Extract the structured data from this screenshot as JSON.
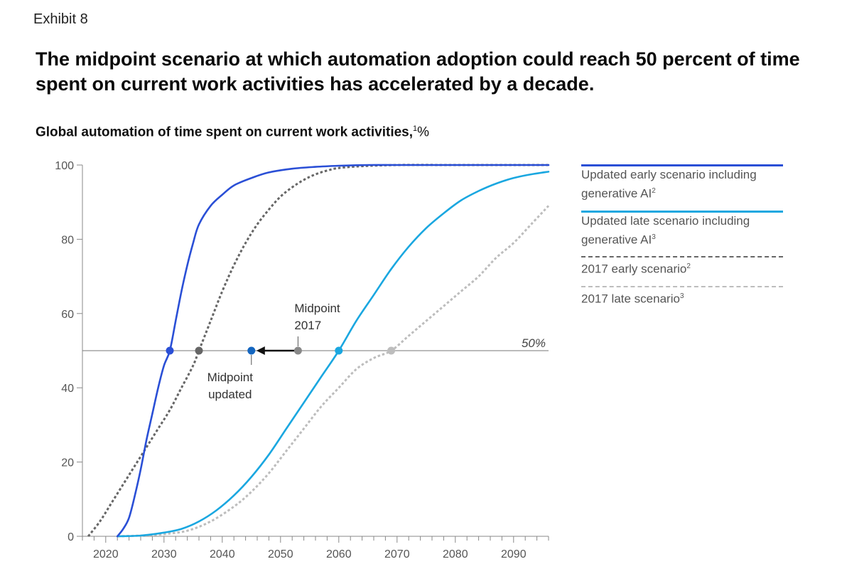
{
  "header": {
    "exhibit": "Exhibit 8",
    "headline": "The midpoint scenario at which automation adoption could reach 50 percent of time spent on current work activities has accelerated by a decade.",
    "subtitle": "Global automation of time spent on current work activities,",
    "subtitle_footnote": "1",
    "subtitle_unit": "%"
  },
  "colors": {
    "updated_early": "#2a4fd6",
    "updated_late": "#1aa7e0",
    "early_2017": "#666666",
    "late_2017": "#bdbdbd",
    "midpoint_updated": "#1466c0",
    "midpoint_2017": "#888888",
    "axis": "#888888"
  },
  "legend": [
    {
      "label": "Updated early scenario including generative AI",
      "footnote": "2",
      "style": "solid",
      "color_key": "updated_early"
    },
    {
      "label": "Updated late scenario including generative AI",
      "footnote": "3",
      "style": "solid",
      "color_key": "updated_late"
    },
    {
      "label": "2017 early scenario",
      "footnote": "2",
      "style": "dashed",
      "color_key": "early_2017"
    },
    {
      "label": "2017 late scenario",
      "footnote": "3",
      "style": "dashed",
      "color_key": "late_2017"
    }
  ],
  "chart_data": {
    "type": "line",
    "title": "Global automation of time spent on current work activities, %",
    "xlabel": "",
    "ylabel": "%",
    "xlim": [
      2016,
      2096
    ],
    "ylim": [
      0,
      100
    ],
    "x_ticks": [
      2020,
      2030,
      2040,
      2050,
      2060,
      2070,
      2080,
      2090
    ],
    "y_ticks": [
      0,
      20,
      40,
      60,
      80,
      100
    ],
    "reference_line": {
      "y": 50,
      "label": "50%"
    },
    "series": [
      {
        "name": "Updated early scenario including generative AI",
        "color_key": "updated_early",
        "style": "solid",
        "x": [
          2022,
          2023,
          2024,
          2025,
          2026,
          2027,
          2028,
          2029,
          2030,
          2031,
          2032,
          2033,
          2034,
          2035,
          2036,
          2038,
          2040,
          2042,
          2045,
          2048,
          2052,
          2056,
          2060,
          2065,
          2070,
          2080,
          2096
        ],
        "y": [
          0,
          2,
          5,
          11,
          18,
          26,
          33,
          40,
          46,
          50,
          58,
          66,
          73,
          79,
          84,
          89,
          92,
          94.5,
          96.5,
          98,
          99,
          99.5,
          99.8,
          100,
          100,
          100,
          100
        ]
      },
      {
        "name": "Updated late scenario including generative AI",
        "color_key": "updated_late",
        "style": "solid",
        "x": [
          2022,
          2026,
          2030,
          2033,
          2036,
          2039,
          2042,
          2045,
          2048,
          2051,
          2054,
          2057,
          2060,
          2063,
          2066,
          2069,
          2072,
          2075,
          2078,
          2081,
          2084,
          2087,
          2090,
          2093,
          2096
        ],
        "y": [
          0,
          0.2,
          1,
          2,
          4,
          7,
          11,
          16,
          22,
          29,
          36,
          43,
          50,
          58,
          65,
          72,
          78,
          83,
          87,
          90.5,
          93,
          95,
          96.5,
          97.5,
          98.2
        ]
      },
      {
        "name": "2017 early scenario",
        "color_key": "early_2017",
        "style": "dashed",
        "x": [
          2017,
          2019,
          2021,
          2023,
          2025,
          2027,
          2029,
          2031,
          2033,
          2035,
          2036,
          2038,
          2040,
          2042,
          2044,
          2046,
          2048,
          2050,
          2052,
          2054,
          2056,
          2058,
          2060,
          2064,
          2070,
          2080,
          2096
        ],
        "y": [
          0,
          4,
          9,
          14,
          19,
          24,
          29,
          34,
          40,
          46,
          50,
          58,
          66,
          73,
          79,
          84,
          88,
          91.5,
          94,
          96,
          97.5,
          98.5,
          99.2,
          99.7,
          100,
          100,
          100
        ]
      },
      {
        "name": "2017 late scenario",
        "color_key": "late_2017",
        "style": "dashed",
        "x": [
          2022,
          2026,
          2030,
          2034,
          2038,
          2042,
          2045,
          2048,
          2051,
          2054,
          2057,
          2060,
          2063,
          2066,
          2069,
          2072,
          2075,
          2078,
          2081,
          2084,
          2087,
          2090,
          2093,
          2096
        ],
        "y": [
          0,
          0.2,
          0.6,
          1.5,
          4,
          8,
          12,
          17,
          23,
          29,
          35,
          40,
          45,
          48,
          50,
          54,
          58,
          62,
          66,
          70,
          75,
          79,
          84,
          89
        ]
      }
    ],
    "midpoints": [
      {
        "name": "updated early",
        "x": 2031,
        "y": 50,
        "color_key": "updated_early"
      },
      {
        "name": "2017 early",
        "x": 2036,
        "y": 50,
        "color_key": "early_2017"
      },
      {
        "name": "midpoint updated",
        "x": 2045,
        "y": 50,
        "color_key": "midpoint_updated"
      },
      {
        "name": "midpoint 2017",
        "x": 2053,
        "y": 50,
        "color_key": "midpoint_2017"
      },
      {
        "name": "updated late",
        "x": 2060,
        "y": 50,
        "color_key": "updated_late"
      },
      {
        "name": "2017 late",
        "x": 2069,
        "y": 50,
        "color_key": "late_2017"
      }
    ],
    "shift_arrow": {
      "from_x": 2053,
      "to_x": 2045,
      "y": 50
    },
    "annotations": [
      {
        "name": "midpoint-2017",
        "lines": [
          "Midpoint",
          "2017"
        ],
        "x": 2053,
        "position": "above"
      },
      {
        "name": "midpoint-updated",
        "lines": [
          "Midpoint",
          "updated"
        ],
        "x": 2045,
        "position": "below"
      }
    ]
  }
}
